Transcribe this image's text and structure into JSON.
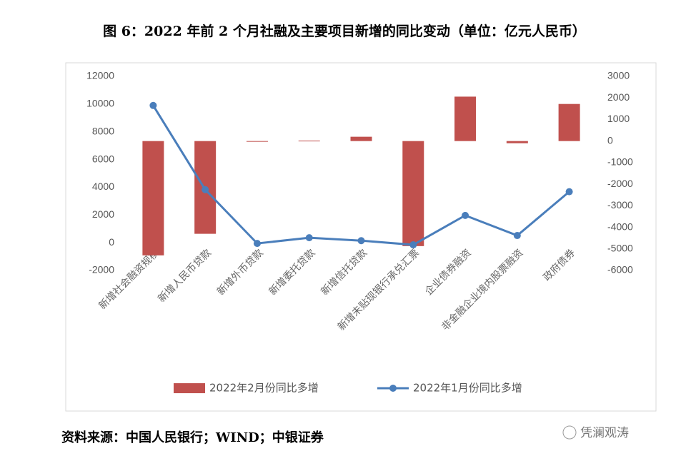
{
  "title": "图 6：2022 年前 2 个月社融及主要项目新增的同比变动（单位：亿元人民币）",
  "source": "资料来源：中国人民银行；WIND；中银证券",
  "watermark": "凭澜观涛",
  "chart_data": {
    "type": "bar-line",
    "categories": [
      "新增社会融资规模",
      "新增人民币贷款",
      "新增外币贷款",
      "新增委托贷款",
      "新增信托贷款",
      "新增未贴现银行承兑汇票",
      "企业债券融资",
      "非金融企业境内股票融资",
      "政府债券"
    ],
    "series": [
      {
        "name": "2022年2月份同比多增",
        "type": "bar",
        "axis": "y2",
        "color": "#c0504d",
        "values": [
          -5300,
          -4300,
          -30,
          20,
          200,
          -4870,
          2060,
          -100,
          1720
        ]
      },
      {
        "name": "2022年1月份同比多增",
        "type": "line",
        "axis": "y",
        "color": "#4a7ebb",
        "values": [
          9900,
          3830,
          -50,
          360,
          150,
          -150,
          1970,
          520,
          3680
        ]
      }
    ],
    "ylim": [
      -2000,
      12000
    ],
    "yticks": [
      -2000,
      0,
      2000,
      4000,
      6000,
      8000,
      10000,
      12000
    ],
    "y2lim": [
      -6000,
      3000
    ],
    "y2ticks": [
      -6000,
      -5000,
      -4000,
      -3000,
      -2000,
      -1000,
      0,
      1000,
      2000,
      3000
    ],
    "legend": "bottom"
  }
}
